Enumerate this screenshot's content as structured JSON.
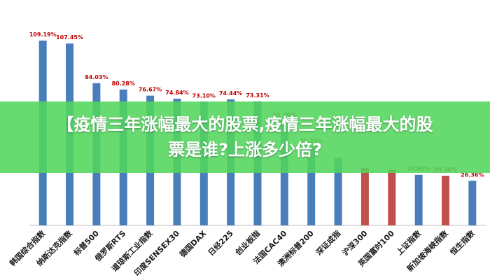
{
  "banner": {
    "title": "【疫情三年涨幅最大的股票,疫情三年涨幅最大的股票是谁?上涨多少倍?"
  },
  "colors": {
    "bar_blue": "#4a7ebb",
    "bar_red": "#c0504d",
    "value_label": "#c00000",
    "banner_bg": "#52d65c"
  },
  "chart_data": {
    "type": "bar",
    "title": "",
    "xlabel": "",
    "ylabel": "",
    "grid": false,
    "legend": "none",
    "ylim": [
      0,
      115
    ],
    "categories": [
      "韩国综合指数",
      "纳斯达克指数",
      "标普500",
      "俄罗斯RTS",
      "道琼斯工业指数",
      "印度SENSEX30",
      "德国DAX",
      "日经225",
      "创业板指",
      "法国CAC40",
      "澳洲标普200",
      "深证成指",
      "沪深300",
      "英国富时100",
      "上证指数",
      "新加坡海峡指数",
      "恒生指数"
    ],
    "values": [
      109.19,
      107.45,
      84.03,
      80.28,
      76.67,
      74.84,
      73.1,
      74.44,
      73.31,
      61.8,
      46.24,
      40,
      34,
      33,
      29.89,
      29.36,
      26.36
    ],
    "labels": [
      "109.19%",
      "107.45%",
      "84.03%",
      "80.28%",
      "76.67%",
      "74.84%",
      "73.10%",
      "74.44%",
      "73.31%",
      "61.80%",
      "46.24%",
      "",
      "",
      "",
      "29.89%",
      "29.36%",
      "26.36%"
    ],
    "bar_colors": [
      "blue",
      "blue",
      "blue",
      "blue",
      "blue",
      "blue",
      "blue",
      "blue",
      "blue",
      "blue",
      "blue",
      "blue",
      "red",
      "red",
      "blue",
      "red",
      "blue"
    ]
  }
}
